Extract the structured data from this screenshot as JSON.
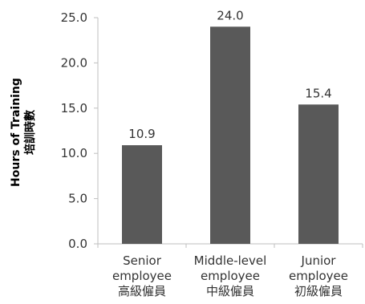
{
  "chart_data": {
    "type": "bar",
    "categories": [
      [
        "Senior",
        "employee",
        "高級僱員"
      ],
      [
        "Middle-level",
        "employee",
        "中級僱員"
      ],
      [
        "Junior",
        "employee",
        "初級僱員"
      ]
    ],
    "values": [
      10.9,
      24.0,
      15.4
    ],
    "value_labels": [
      "10.9",
      "24.0",
      "15.4"
    ],
    "ylabel": [
      "Hours of Training",
      "培訓時數"
    ],
    "ylim": [
      0,
      25
    ],
    "yticks": [
      0,
      5,
      10,
      15,
      20,
      25
    ],
    "ytick_labels": [
      "0.0",
      "5.0",
      "10.0",
      "15.0",
      "20.0",
      "25.0"
    ],
    "grid": false,
    "legend": "none",
    "colors": {
      "bar": "#595959",
      "axis": "#bfbfbf",
      "text": "#333333"
    }
  }
}
